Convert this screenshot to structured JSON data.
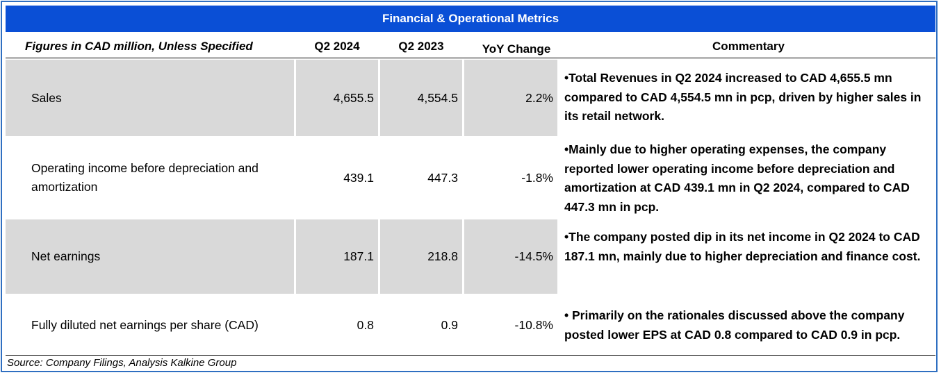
{
  "title": "Financial & Operational Metrics",
  "headers": {
    "figures": "Figures in CAD million, Unless Specified",
    "q2_2024": "Q2 2024",
    "q2_2023": "Q2 2023",
    "yoy": "YoY Change",
    "commentary": "Commentary"
  },
  "rows": [
    {
      "label": "Sales",
      "q2_2024": "4,655.5",
      "q2_2023": "4,554.5",
      "yoy": "2.2%",
      "commentary": "•Total Revenues in Q2 2024 increased to CAD 4,655.5 mn compared to CAD 4,554.5 mn in pcp, driven by higher sales in its retail network."
    },
    {
      "label": "Operating income before depreciation and amortization",
      "q2_2024": "439.1",
      "q2_2023": "447.3",
      "yoy": "-1.8%",
      "commentary": "•Mainly due to higher operating expenses, the company reported lower operating income before depreciation and amortization at CAD 439.1 mn in Q2 2024, compared to CAD 447.3 mn in pcp."
    },
    {
      "label": "Net earnings",
      "q2_2024": "187.1",
      "q2_2023": "218.8",
      "yoy": "-14.5%",
      "commentary": "•The company posted dip in its net income in Q2 2024 to CAD 187.1 mn, mainly due to higher depreciation and finance cost."
    },
    {
      "label": "Fully diluted net earnings per share (CAD)",
      "q2_2024": "0.8",
      "q2_2023": "0.9",
      "yoy": "-10.8%",
      "commentary": "• Primarily on the rationales discussed above the company posted lower EPS at CAD 0.8 compared to CAD 0.9 in pcp."
    }
  ],
  "source": "Source: Company Filings, Analysis Kalkine Group",
  "colors": {
    "title_bg": "#0a4fd6",
    "shade": "#d9d9d9",
    "border": "#2f6fc1"
  }
}
